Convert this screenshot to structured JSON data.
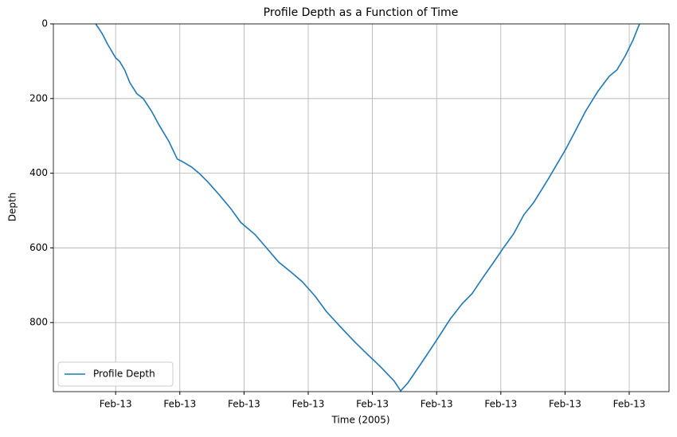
{
  "chart_data": {
    "type": "line",
    "title": "Profile Depth as a Function of Time",
    "x_label": "Time (2005)",
    "y_label": "Depth",
    "x": [
      0.69,
      0.79,
      0.87,
      1.0,
      1.06,
      1.14,
      1.22,
      1.33,
      1.43,
      1.56,
      1.68,
      1.83,
      1.96,
      2.03,
      2.18,
      2.3,
      2.45,
      2.61,
      2.79,
      2.95,
      3.17,
      3.36,
      3.54,
      3.74,
      3.91,
      4.11,
      4.28,
      4.51,
      4.72,
      4.91,
      5.13,
      5.34,
      5.44,
      5.55,
      5.78,
      6.0,
      6.21,
      6.4,
      6.55,
      6.73,
      6.89,
      7.04,
      7.2,
      7.36,
      7.51,
      7.74,
      8.01,
      8.16,
      8.32,
      8.51,
      8.69,
      8.81,
      8.94,
      9.06,
      9.16
    ],
    "series": [
      {
        "name": "Profile Depth",
        "color": "#1f77b4",
        "values": [
          0,
          26,
          53,
          91,
          100,
          123,
          157,
          187,
          200,
          234,
          272,
          315,
          362,
          368,
          383,
          400,
          426,
          457,
          494,
          532,
          564,
          602,
          638,
          666,
          691,
          730,
          770,
          813,
          851,
          883,
          919,
          957,
          983,
          962,
          904,
          847,
          791,
          749,
          723,
          677,
          638,
          600,
          562,
          511,
          479,
          415,
          336,
          287,
          234,
          181,
          140,
          123,
          85,
          43,
          0
        ]
      }
    ],
    "xlim": [
      0.03,
      9.62
    ],
    "xticks": [
      {
        "value": 1,
        "label": "Feb-13"
      },
      {
        "value": 2,
        "label": "Feb-13"
      },
      {
        "value": 3,
        "label": "Feb-13"
      },
      {
        "value": 4,
        "label": "Feb-13"
      },
      {
        "value": 5,
        "label": "Feb-13"
      },
      {
        "value": 6,
        "label": "Feb-13"
      },
      {
        "value": 7,
        "label": "Feb-13"
      },
      {
        "value": 8,
        "label": "Feb-13"
      },
      {
        "value": 9,
        "label": "Feb-13"
      }
    ],
    "ylim": [
      985,
      0
    ],
    "yticks": [
      0,
      200,
      400,
      600,
      800
    ],
    "grid": true,
    "legend": "lower left"
  }
}
